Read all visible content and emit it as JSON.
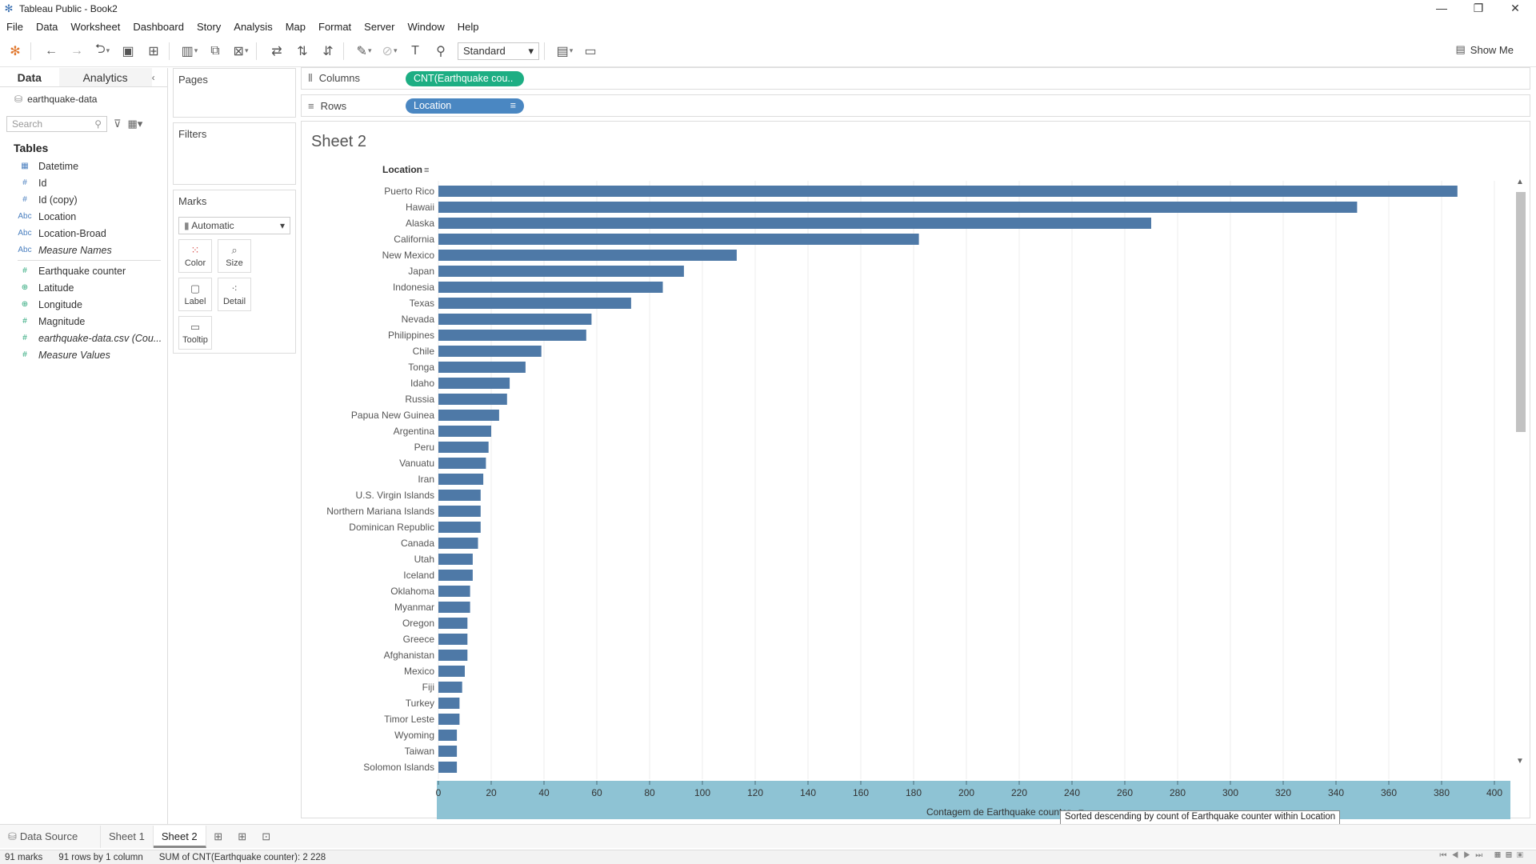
{
  "window": {
    "title": "Tableau Public - Book2",
    "minimize": "—",
    "maximize": "❐",
    "close": "✕"
  },
  "menu": [
    "File",
    "Data",
    "Worksheet",
    "Dashboard",
    "Story",
    "Analysis",
    "Map",
    "Format",
    "Server",
    "Window",
    "Help"
  ],
  "toolbar": {
    "fit_select": "Standard",
    "show_me": "Show Me"
  },
  "datapane": {
    "tab_data": "Data",
    "tab_analytics": "Analytics",
    "datasource": "earthquake-data",
    "search_placeholder": "Search",
    "tables_heading": "Tables",
    "fields": [
      {
        "label": "Datetime",
        "icon": "calendar-icon",
        "icon_glyph": "▦",
        "color": "blue",
        "italic": false
      },
      {
        "label": "Id",
        "icon": "number-icon",
        "icon_glyph": "#",
        "color": "blue",
        "italic": false
      },
      {
        "label": "Id (copy)",
        "icon": "number-icon",
        "icon_glyph": "#",
        "color": "blue",
        "italic": false
      },
      {
        "label": "Location",
        "icon": "string-icon",
        "icon_glyph": "Abc",
        "color": "blue",
        "italic": false
      },
      {
        "label": "Location-Broad",
        "icon": "string-icon",
        "icon_glyph": "Abc",
        "color": "blue",
        "italic": false
      },
      {
        "label": "Measure Names",
        "icon": "string-icon",
        "icon_glyph": "Abc",
        "color": "blue",
        "italic": true
      },
      {
        "label": "Earthquake counter",
        "icon": "number-icon",
        "icon_glyph": "#",
        "color": "green",
        "italic": false
      },
      {
        "label": "Latitude",
        "icon": "globe-icon",
        "icon_glyph": "⊕",
        "color": "green",
        "italic": false
      },
      {
        "label": "Longitude",
        "icon": "globe-icon",
        "icon_glyph": "⊕",
        "color": "green",
        "italic": false
      },
      {
        "label": "Magnitude",
        "icon": "number-icon",
        "icon_glyph": "#",
        "color": "green",
        "italic": false
      },
      {
        "label": "earthquake-data.csv (Cou...",
        "icon": "number-icon",
        "icon_glyph": "#",
        "color": "green",
        "italic": true
      },
      {
        "label": "Measure Values",
        "icon": "number-icon",
        "icon_glyph": "#",
        "color": "green",
        "italic": true
      }
    ]
  },
  "cards": {
    "pages": "Pages",
    "filters": "Filters",
    "marks": "Marks",
    "marks_type": "Automatic",
    "mark_buttons": [
      "Color",
      "Size",
      "Label",
      "Detail",
      "Tooltip"
    ]
  },
  "shelves": {
    "columns_label": "Columns",
    "columns_pill": "CNT(Earthquake cou..",
    "rows_label": "Rows",
    "rows_pill": "Location"
  },
  "sheet": {
    "title": "Sheet 2",
    "row_header": "Location"
  },
  "tooltip": "Sorted descending by count of Earthquake counter within Location",
  "tabs": [
    "Data Source",
    "Sheet 1",
    "Sheet 2"
  ],
  "status": {
    "marks": "91 marks",
    "rows": "91 rows by 1 column",
    "sum": "SUM of CNT(Earthquake counter): 2 228"
  },
  "colors": {
    "bar": "#4e79a7",
    "axis_band": "#8ec3d4",
    "pill_green": "#1dae83",
    "pill_blue": "#4a87c2"
  },
  "chart_data": {
    "type": "bar",
    "orientation": "horizontal",
    "categories": [
      "Puerto Rico",
      "Hawaii",
      "Alaska",
      "California",
      "New Mexico",
      "Japan",
      "Indonesia",
      "Texas",
      "Nevada",
      "Philippines",
      "Chile",
      "Tonga",
      "Idaho",
      "Russia",
      "Papua New Guinea",
      "Argentina",
      "Peru",
      "Vanuatu",
      "Iran",
      "U.S. Virgin Islands",
      "Northern Mariana Islands",
      "Dominican Republic",
      "Canada",
      "Utah",
      "Iceland",
      "Oklahoma",
      "Myanmar",
      "Oregon",
      "Greece",
      "Afghanistan",
      "Mexico",
      "Fiji",
      "Turkey",
      "Timor Leste",
      "Wyoming",
      "Taiwan",
      "Solomon Islands"
    ],
    "values": [
      386,
      348,
      270,
      182,
      113,
      93,
      85,
      73,
      58,
      56,
      39,
      33,
      27,
      26,
      23,
      20,
      19,
      18,
      17,
      16,
      16,
      16,
      15,
      13,
      13,
      12,
      12,
      11,
      11,
      11,
      10,
      9,
      8,
      8,
      7,
      7,
      7
    ],
    "xlabel": "Contagem de Earthquake counter",
    "xlim": [
      0,
      400
    ],
    "xticks": [
      0,
      20,
      40,
      60,
      80,
      100,
      120,
      140,
      160,
      180,
      200,
      220,
      240,
      260,
      280,
      300,
      320,
      340,
      360,
      380,
      400
    ],
    "grid": true,
    "sort": "descending"
  }
}
